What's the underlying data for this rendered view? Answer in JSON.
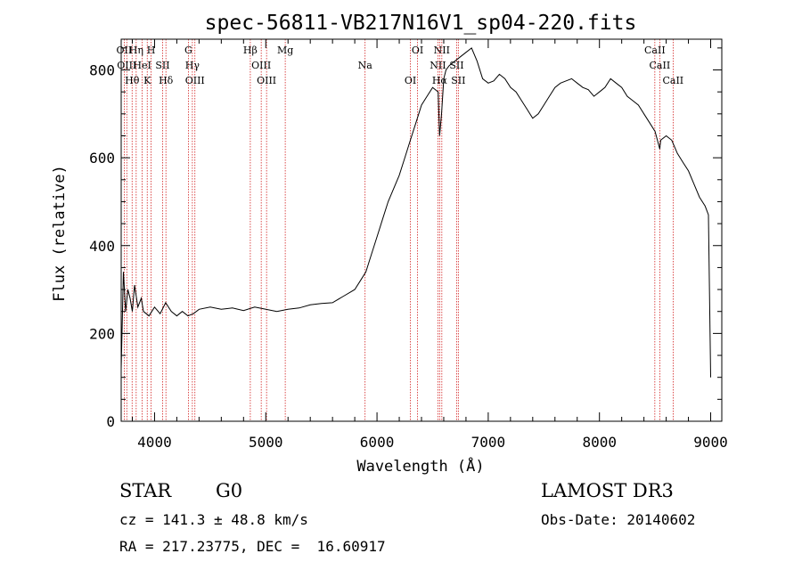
{
  "chart_data": {
    "type": "line",
    "title": "spec-56811-VB217N16V1_sp04-220.fits",
    "xlabel": "Wavelength (Å)",
    "ylabel": "Flux (relative)",
    "xlim": [
      3700,
      9100
    ],
    "ylim": [
      0,
      870
    ],
    "xticks": [
      4000,
      5000,
      6000,
      7000,
      8000,
      9000
    ],
    "yticks": [
      0,
      200,
      400,
      600,
      800
    ],
    "series": [
      {
        "name": "flux",
        "x": [
          3700,
          3720,
          3740,
          3760,
          3780,
          3800,
          3820,
          3850,
          3880,
          3900,
          3950,
          4000,
          4050,
          4100,
          4150,
          4200,
          4250,
          4300,
          4350,
          4400,
          4500,
          4600,
          4700,
          4800,
          4900,
          5000,
          5100,
          5200,
          5300,
          5400,
          5500,
          5600,
          5700,
          5800,
          5850,
          5900,
          5950,
          6000,
          6050,
          6100,
          6150,
          6200,
          6250,
          6300,
          6350,
          6400,
          6450,
          6500,
          6550,
          6563,
          6580,
          6600,
          6620,
          6650,
          6700,
          6750,
          6800,
          6850,
          6900,
          6950,
          7000,
          7050,
          7100,
          7150,
          7200,
          7250,
          7300,
          7350,
          7400,
          7450,
          7500,
          7550,
          7600,
          7650,
          7700,
          7750,
          7800,
          7850,
          7900,
          7950,
          8000,
          8050,
          8100,
          8150,
          8200,
          8250,
          8300,
          8350,
          8400,
          8450,
          8500,
          8542,
          8550,
          8600,
          8650,
          8700,
          8750,
          8800,
          8850,
          8900,
          8950,
          8980,
          9000
        ],
        "y": [
          120,
          340,
          250,
          300,
          280,
          250,
          310,
          260,
          280,
          250,
          240,
          260,
          245,
          270,
          250,
          240,
          250,
          240,
          245,
          255,
          260,
          255,
          258,
          252,
          260,
          255,
          250,
          255,
          258,
          265,
          268,
          270,
          285,
          300,
          320,
          340,
          380,
          420,
          460,
          500,
          530,
          560,
          600,
          640,
          680,
          720,
          740,
          760,
          750,
          650,
          700,
          780,
          800,
          810,
          820,
          830,
          840,
          850,
          820,
          780,
          770,
          775,
          790,
          780,
          760,
          750,
          730,
          710,
          690,
          700,
          720,
          740,
          760,
          770,
          775,
          780,
          770,
          760,
          755,
          740,
          750,
          760,
          780,
          770,
          760,
          740,
          730,
          720,
          700,
          680,
          660,
          620,
          640,
          650,
          640,
          610,
          590,
          570,
          540,
          510,
          490,
          470,
          100
        ]
      }
    ],
    "line_markers": [
      {
        "wavelength": 3727,
        "label": "OII"
      },
      {
        "wavelength": 3750,
        "label": "OIII"
      },
      {
        "wavelength": 3798,
        "label": "Hθ"
      },
      {
        "wavelength": 3835,
        "label": "Hη"
      },
      {
        "wavelength": 3889,
        "label": "HeI"
      },
      {
        "wavelength": 3934,
        "label": "K"
      },
      {
        "wavelength": 3969,
        "label": "H"
      },
      {
        "wavelength": 4072,
        "label": "SII"
      },
      {
        "wavelength": 4102,
        "label": "Hδ"
      },
      {
        "wavelength": 4304,
        "label": "G"
      },
      {
        "wavelength": 4340,
        "label": "Hγ"
      },
      {
        "wavelength": 4363,
        "label": "OIII"
      },
      {
        "wavelength": 4861,
        "label": "Hβ"
      },
      {
        "wavelength": 4959,
        "label": "OIII"
      },
      {
        "wavelength": 5007,
        "label": "OIII"
      },
      {
        "wavelength": 5175,
        "label": "Mg"
      },
      {
        "wavelength": 5893,
        "label": "Na"
      },
      {
        "wavelength": 6300,
        "label": "OI"
      },
      {
        "wavelength": 6364,
        "label": "OI"
      },
      {
        "wavelength": 6548,
        "label": "NII"
      },
      {
        "wavelength": 6563,
        "label": "Hα"
      },
      {
        "wavelength": 6583,
        "label": "NII"
      },
      {
        "wavelength": 6716,
        "label": "SII"
      },
      {
        "wavelength": 6731,
        "label": "SII"
      },
      {
        "wavelength": 8498,
        "label": "CaII"
      },
      {
        "wavelength": 8542,
        "label": "CaII"
      },
      {
        "wavelength": 8662,
        "label": "CaII"
      }
    ],
    "marker_color": "#cc0000"
  },
  "info": {
    "object_class": "STAR",
    "subclass": "G0",
    "survey": "LAMOST DR3",
    "cz": "cz = 141.3 ± 48.8 km/s",
    "obs_date": "Obs-Date: 20140602",
    "coords": "RA = 217.23775, DEC =  16.60917"
  }
}
